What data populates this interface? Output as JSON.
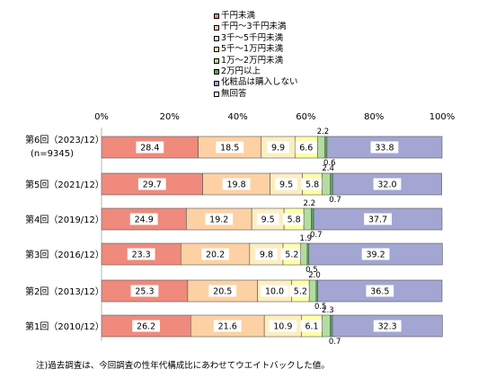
{
  "chart_data": {
    "type": "bar",
    "orientation": "horizontal",
    "stacked": true,
    "x_ticks": [
      "0%",
      "20%",
      "40%",
      "60%",
      "80%",
      "100%"
    ],
    "xlim": [
      0,
      100
    ],
    "grid": false,
    "legend_position": "top-center",
    "categories": [
      {
        "label": "第6回（2023/12）",
        "sublabel": "(n=9345)"
      },
      {
        "label": "第5回（2021/12）",
        "sublabel": ""
      },
      {
        "label": "第4回（2019/12）",
        "sublabel": ""
      },
      {
        "label": "第3回（2016/12）",
        "sublabel": ""
      },
      {
        "label": "第2回（2013/12）",
        "sublabel": ""
      },
      {
        "label": "第1回（2010/12）",
        "sublabel": ""
      }
    ],
    "series": [
      {
        "name": "千円未満",
        "color": "#ef8a7c",
        "values": [
          28.4,
          29.7,
          24.9,
          23.3,
          25.3,
          26.2
        ]
      },
      {
        "name": "千円～3千円未満",
        "color": "#fdd1a3",
        "values": [
          18.5,
          19.8,
          19.2,
          20.2,
          20.5,
          21.6
        ]
      },
      {
        "name": "3千～5千円未満",
        "color": "#fdeec1",
        "values": [
          9.9,
          9.5,
          9.5,
          9.8,
          10.0,
          10.9
        ]
      },
      {
        "name": "5千～1万円未満",
        "color": "#ffffa6",
        "values": [
          6.6,
          5.8,
          5.8,
          5.2,
          5.2,
          6.1
        ]
      },
      {
        "name": "1万～2万円未満",
        "color": "#b3dd9d",
        "values": [
          2.2,
          2.4,
          2.2,
          1.9,
          2.0,
          2.3
        ]
      },
      {
        "name": "2万円以上",
        "color": "#57a65c",
        "values": [
          0.6,
          0.7,
          0.7,
          0.5,
          0.5,
          0.7
        ]
      },
      {
        "name": "化粧品は購入しない",
        "color": "#a3a5d2",
        "values": [
          33.8,
          32.0,
          37.7,
          39.2,
          36.5,
          32.3
        ]
      },
      {
        "name": "無回答",
        "color": "#ffffff",
        "values": [
          0,
          0,
          0,
          0,
          0,
          0
        ]
      }
    ],
    "label_text": {
      "series": [
        [
          "28.4",
          "29.7",
          "24.9",
          "23.3",
          "25.3",
          "26.2"
        ],
        [
          "18.5",
          "19.8",
          "19.2",
          "20.2",
          "20.5",
          "21.6"
        ],
        [
          "9.9",
          "9.5",
          "9.5",
          "9.8",
          "10.0",
          "10.9"
        ],
        [
          "6.6",
          "5.8",
          "5.8",
          "5.2",
          "5.2",
          "6.1"
        ],
        [
          "2.2",
          "2.4",
          "2.2",
          "1.9",
          "2.0",
          "2.3"
        ],
        [
          "0.6",
          "0.7",
          "0.7",
          "0.5",
          "0.5",
          "0.7"
        ],
        [
          "33.8",
          "32.0",
          "37.7",
          "39.2",
          "36.5",
          "32.3"
        ]
      ]
    }
  },
  "footnote": "注)過去調査は、今回調査の性年代構成比にあわせてウエイトバックした値。"
}
